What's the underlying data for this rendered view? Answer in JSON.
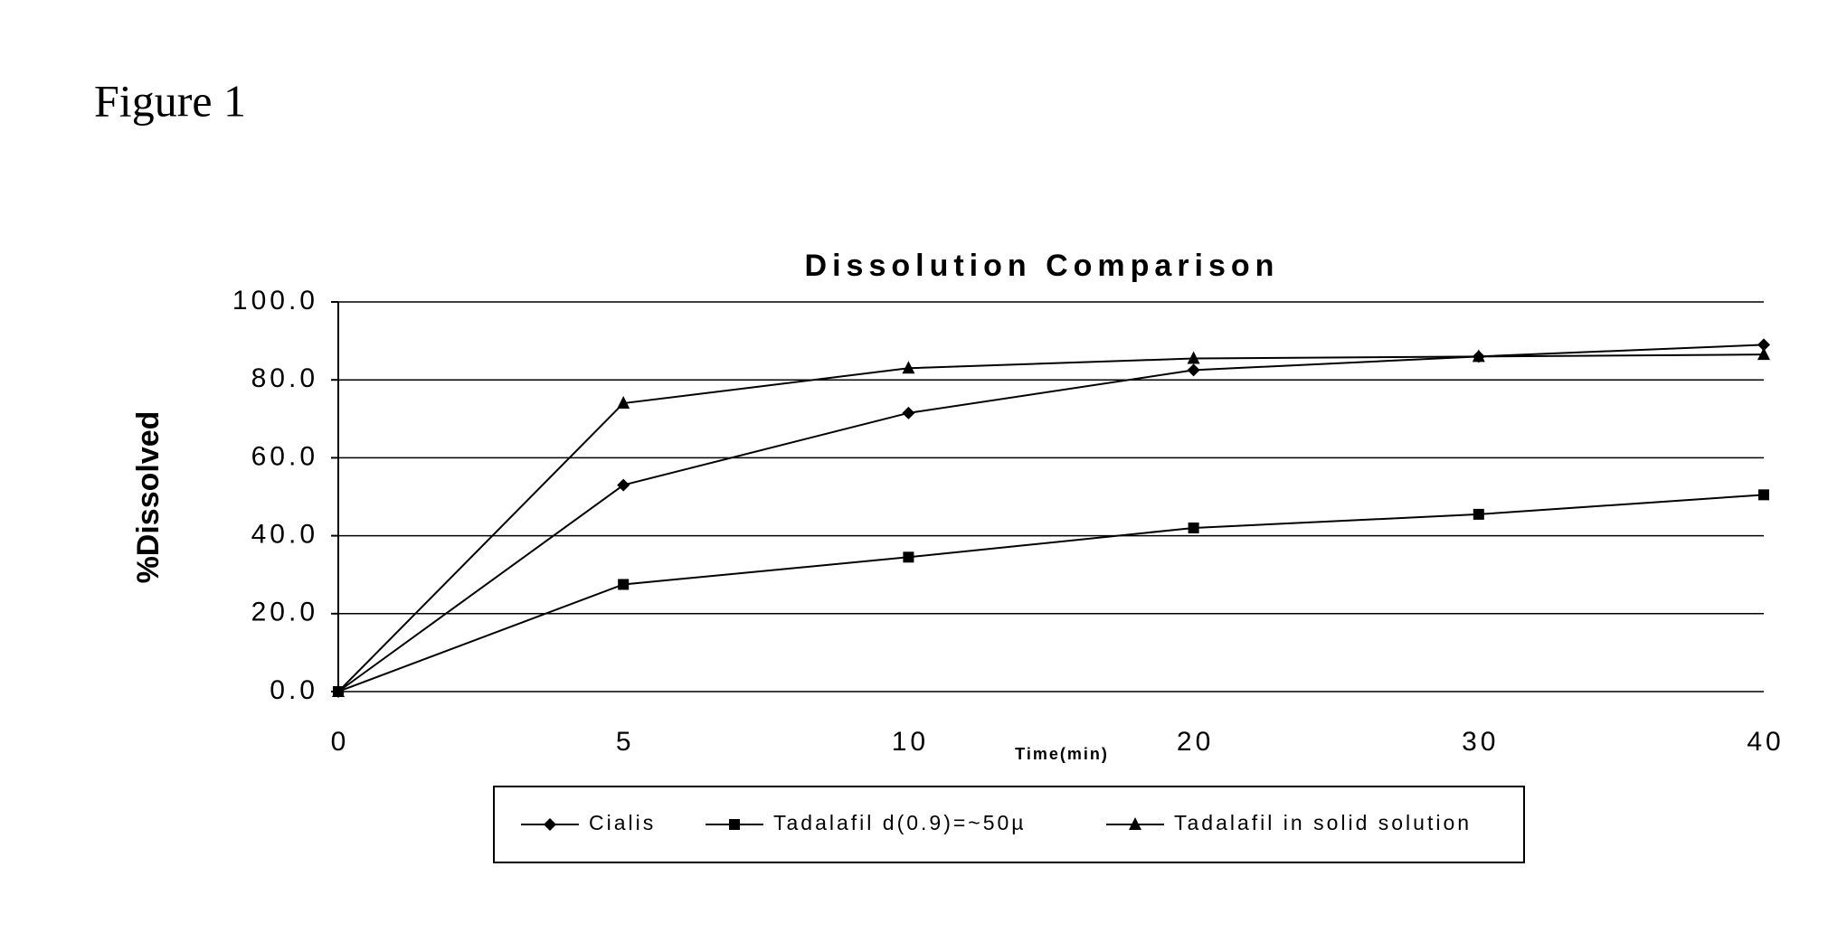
{
  "figure_label": "Figure 1",
  "chart_data": {
    "type": "line",
    "title": "Dissolution Comparison",
    "x_label": "Time(min)",
    "y_label": "%Dissolved",
    "categories": [
      "0",
      "5",
      "10",
      "20",
      "30",
      "40"
    ],
    "series": [
      {
        "name": "Cialis",
        "color": "#000000",
        "marker": "diamond",
        "values": [
          0,
          53,
          71.5,
          82.5,
          86,
          89
        ]
      },
      {
        "name": "Tadalafil d(0.9)=~50µ",
        "color": "#000000",
        "marker": "square",
        "values": [
          0,
          27.5,
          34.5,
          42,
          45.5,
          50.5
        ]
      },
      {
        "name": "Tadalafil in solid solution",
        "color": "#000000",
        "marker": "triangle",
        "values": [
          0,
          74,
          83,
          85.5,
          86,
          86.5
        ]
      }
    ],
    "ylim": [
      0,
      100
    ],
    "yticks": [
      {
        "value": 0,
        "label": "0.0"
      },
      {
        "value": 20,
        "label": "20.0"
      },
      {
        "value": 40,
        "label": "40.0"
      },
      {
        "value": 60,
        "label": "60.0"
      },
      {
        "value": 80,
        "label": "80.0"
      },
      {
        "value": 100,
        "label": "100.0"
      }
    ],
    "grid": true,
    "legend": "bottom"
  }
}
